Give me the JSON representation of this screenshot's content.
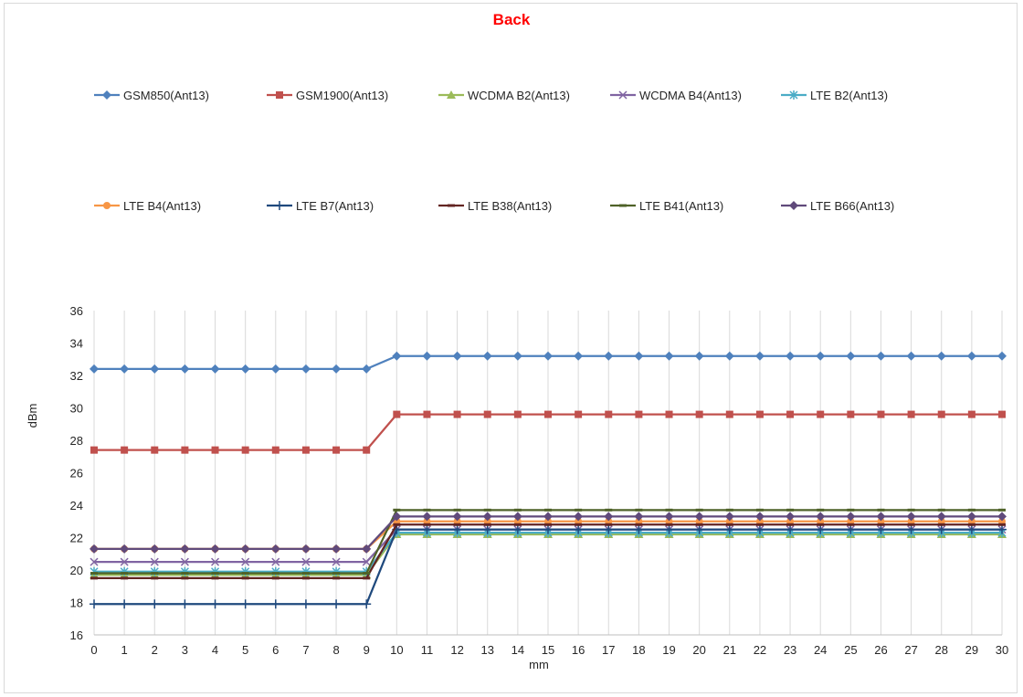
{
  "chart_data": {
    "type": "line",
    "title": "Back",
    "title_color": "#ff0000",
    "xlabel": "mm",
    "ylabel": "dBm",
    "x": [
      0,
      1,
      2,
      3,
      4,
      5,
      6,
      7,
      8,
      9,
      10,
      11,
      12,
      13,
      14,
      15,
      16,
      17,
      18,
      19,
      20,
      21,
      22,
      23,
      24,
      25,
      26,
      27,
      28,
      29,
      30
    ],
    "ylim": [
      16,
      36
    ],
    "yticks": [
      16,
      18,
      20,
      22,
      24,
      26,
      28,
      30,
      32,
      34,
      36
    ],
    "grid": "vertical",
    "legend_position": "top",
    "series": [
      {
        "name": "GSM850(Ant13)",
        "color": "#4f81bd",
        "marker": "diamond",
        "before": 32.4,
        "after": 33.2
      },
      {
        "name": "GSM1900(Ant13)",
        "color": "#c0504d",
        "marker": "square",
        "before": 27.4,
        "after": 29.6
      },
      {
        "name": "WCDMA B2(Ant13)",
        "color": "#9bbb59",
        "marker": "triangle",
        "before": 19.7,
        "after": 22.2
      },
      {
        "name": "WCDMA B4(Ant13)",
        "color": "#8064a2",
        "marker": "x",
        "before": 20.5,
        "after": 22.5
      },
      {
        "name": "LTE B2(Ant13)",
        "color": "#4bacc6",
        "marker": "star",
        "before": 19.9,
        "after": 22.3
      },
      {
        "name": "LTE B4(Ant13)",
        "color": "#f79646",
        "marker": "circle",
        "before": 21.3,
        "after": 23.0
      },
      {
        "name": "LTE B7(Ant13)",
        "color": "#1f497d",
        "marker": "plus",
        "before": 17.9,
        "after": 22.5
      },
      {
        "name": "LTE B38(Ant13)",
        "color": "#632523",
        "marker": "dash",
        "before": 19.5,
        "after": 22.8
      },
      {
        "name": "LTE B41(Ant13)",
        "color": "#4f6228",
        "marker": "dash",
        "before": 19.8,
        "after": 23.7
      },
      {
        "name": "LTE B66(Ant13)",
        "color": "#604a7b",
        "marker": "diamond",
        "before": 21.3,
        "after": 23.3
      }
    ],
    "step_after_x": 9
  }
}
